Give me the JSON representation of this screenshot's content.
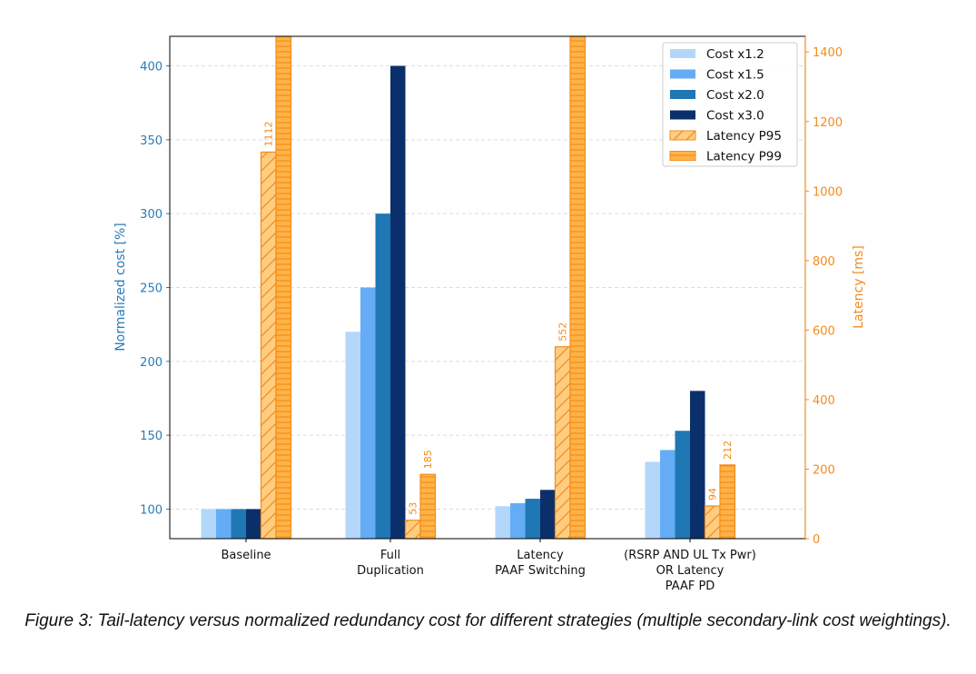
{
  "chart_data": {
    "type": "bar",
    "categories": [
      "Baseline",
      "Full\nDuplication",
      "Latency\nPAAF Switching",
      "(RSRP AND UL Tx Pwr)\nOR Latency\nPAAF PD"
    ],
    "ylabel": "Normalized cost [%]",
    "y2label": "Latency [ms]",
    "ylim": [
      80,
      420
    ],
    "y2lim": [
      0,
      1445
    ],
    "yticks": [
      100,
      150,
      200,
      250,
      300,
      350,
      400
    ],
    "y2ticks": [
      0,
      200,
      400,
      600,
      800,
      1000,
      1200,
      1400
    ],
    "grid": true,
    "legend_position": "top-right",
    "series": [
      {
        "name": "Cost x1.2",
        "axis": "left",
        "color": "#b3d7fb",
        "hatch": "none",
        "values": [
          100,
          220,
          102,
          132
        ]
      },
      {
        "name": "Cost x1.5",
        "axis": "left",
        "color": "#64adf6",
        "hatch": "none",
        "values": [
          100,
          250,
          104,
          140
        ]
      },
      {
        "name": "Cost x2.0",
        "axis": "left",
        "color": "#1f77b4",
        "hatch": "none",
        "values": [
          100,
          300,
          107,
          153
        ]
      },
      {
        "name": "Cost x3.0",
        "axis": "left",
        "color": "#0b2f6b",
        "hatch": "none",
        "values": [
          100,
          400,
          113,
          180
        ]
      },
      {
        "name": "Latency P95",
        "axis": "right",
        "color": "#ffcc80",
        "edge": "#f28c1c",
        "hatch": "diagonal",
        "values": [
          1112,
          53,
          552,
          94
        ],
        "labels": [
          "1112",
          "53",
          "552",
          "94"
        ]
      },
      {
        "name": "Latency P99",
        "axis": "right",
        "color": "#ffb347",
        "edge": "#f28c1c",
        "hatch": "horizontal",
        "values": [
          null,
          185,
          null,
          212
        ],
        "labels": [
          "",
          "185",
          "",
          "212"
        ]
      }
    ],
    "left_axis_color": "#2b7bb9",
    "right_axis_color": "#f28c1c"
  },
  "caption": "Figure 3: Tail-latency versus normalized redundancy cost for different strategies (multiple secondary-link cost weightings)."
}
